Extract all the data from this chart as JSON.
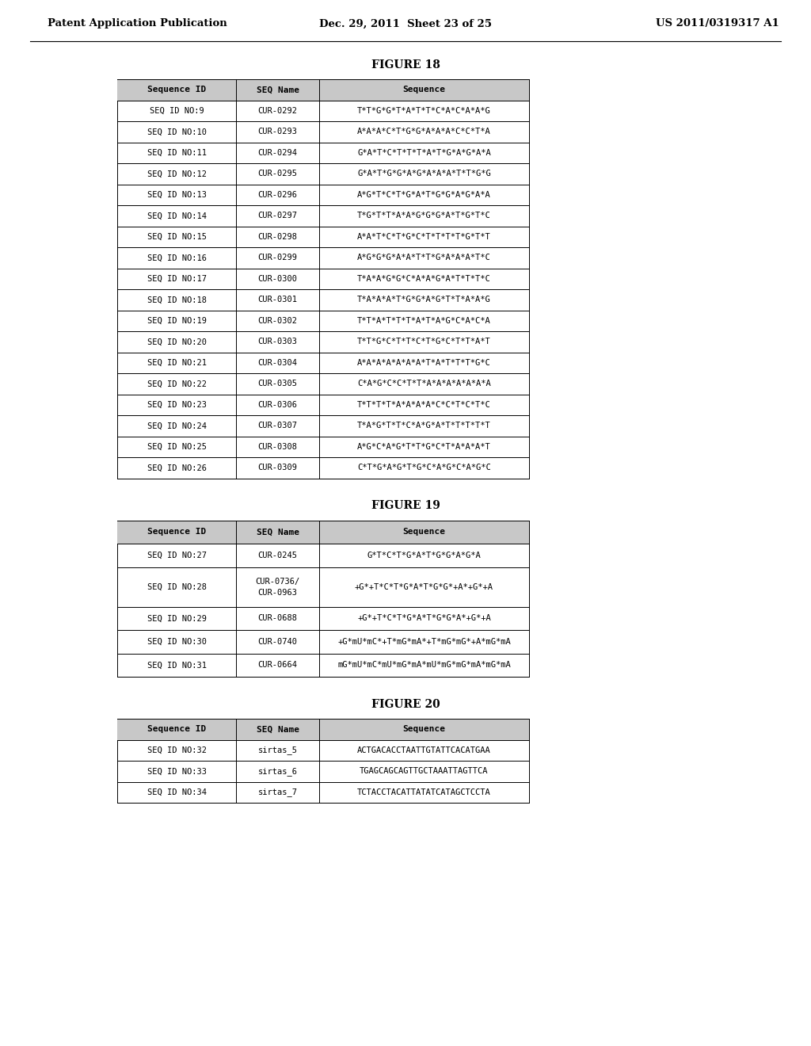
{
  "header_left": "Patent Application Publication",
  "header_mid": "Dec. 29, 2011  Sheet 23 of 25",
  "header_right": "US 2011/0319317 A1",
  "fig18_title": "FIGURE 18",
  "fig19_title": "FIGURE 19",
  "fig20_title": "FIGURE 20",
  "fig18_headers": [
    "Sequence ID",
    "SEQ Name",
    "Sequence"
  ],
  "fig18_rows": [
    [
      "SEQ ID NO:9",
      "CUR-0292",
      "T*T*G*G*T*A*T*T*C*A*C*A*A*G"
    ],
    [
      "SEQ ID NO:10",
      "CUR-0293",
      "A*A*A*C*T*G*G*A*A*A*C*C*T*A"
    ],
    [
      "SEQ ID NO:11",
      "CUR-0294",
      "G*A*T*C*T*T*T*A*T*G*A*G*A*A"
    ],
    [
      "SEQ ID NO:12",
      "CUR-0295",
      "G*A*T*G*G*A*G*A*A*A*T*T*G*G"
    ],
    [
      "SEQ ID NO:13",
      "CUR-0296",
      "A*G*T*C*T*G*A*T*G*G*A*G*A*A"
    ],
    [
      "SEQ ID NO:14",
      "CUR-0297",
      "T*G*T*T*A*A*G*G*G*A*T*G*T*C"
    ],
    [
      "SEQ ID NO:15",
      "CUR-0298",
      "A*A*T*C*T*G*C*T*T*T*T*G*T*T"
    ],
    [
      "SEQ ID NO:16",
      "CUR-0299",
      "A*G*G*G*A*A*T*T*G*A*A*A*T*C"
    ],
    [
      "SEQ ID NO:17",
      "CUR-0300",
      "T*A*A*G*G*C*A*A*G*A*T*T*T*C"
    ],
    [
      "SEQ ID NO:18",
      "CUR-0301",
      "T*A*A*A*T*G*G*A*G*T*T*A*A*G"
    ],
    [
      "SEQ ID NO:19",
      "CUR-0302",
      "T*T*A*T*T*T*A*T*A*G*C*A*C*A"
    ],
    [
      "SEQ ID NO:20",
      "CUR-0303",
      "T*T*G*C*T*T*C*T*G*C*T*T*A*T"
    ],
    [
      "SEQ ID NO:21",
      "CUR-0304",
      "A*A*A*A*A*A*A*T*A*T*T*T*G*C"
    ],
    [
      "SEQ ID NO:22",
      "CUR-0305",
      "C*A*G*C*C*T*T*A*A*A*A*A*A*A"
    ],
    [
      "SEQ ID NO:23",
      "CUR-0306",
      "T*T*T*T*A*A*A*A*C*C*T*C*T*C"
    ],
    [
      "SEQ ID NO:24",
      "CUR-0307",
      "T*A*G*T*T*C*A*G*A*T*T*T*T*T"
    ],
    [
      "SEQ ID NO:25",
      "CUR-0308",
      "A*G*C*A*G*T*T*G*C*T*A*A*A*T"
    ],
    [
      "SEQ ID NO:26",
      "CUR-0309",
      "C*T*G*A*G*T*G*C*A*G*C*A*G*C"
    ]
  ],
  "fig19_headers": [
    "Sequence ID",
    "SEQ Name",
    "Sequence"
  ],
  "fig19_rows": [
    [
      "SEQ ID NO:27",
      "CUR-0245",
      "G*T*C*T*G*A*T*G*G*A*G*A"
    ],
    [
      "SEQ ID NO:28",
      "CUR-0736/\nCUR-0963",
      "+G*+T*C*T*G*A*T*G*G*+A*+G*+A"
    ],
    [
      "SEQ ID NO:29",
      "CUR-0688",
      "+G*+T*C*T*G*A*T*G*G*A*+G*+A"
    ],
    [
      "SEQ ID NO:30",
      "CUR-0740",
      "+G*mU*mC*+T*mG*mA*+T*mG*mG*+A*mG*mA"
    ],
    [
      "SEQ ID NO:31",
      "CUR-0664",
      "mG*mU*mC*mU*mG*mA*mU*mG*mG*mA*mG*mA"
    ]
  ],
  "fig20_headers": [
    "Sequence ID",
    "SEQ Name",
    "Sequence"
  ],
  "fig20_rows": [
    [
      "SEQ ID NO:32",
      "sirtas_5",
      "ACTGACACCTAATTGTATTCACATGAA"
    ],
    [
      "SEQ ID NO:33",
      "sirtas_6",
      "TGAGCAGCAGTTGCTAAATTAGTTCA"
    ],
    [
      "SEQ ID NO:34",
      "sirtas_7",
      "TCTACCTACATTATATCATAGCTCCTA"
    ]
  ],
  "bg_color": "#ffffff"
}
